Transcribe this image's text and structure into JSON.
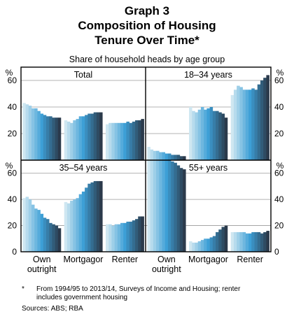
{
  "title_lines": [
    "Graph 3",
    "Composition of Housing",
    "Tenure Over Time*"
  ],
  "subtitle": "Share of household heads by age group",
  "footnote": {
    "marker": "*",
    "line1": "From 1994/95 to 2013/14, Surveys of Income and Housing; renter",
    "line2": "includes government housing"
  },
  "sources": "Sources: ABS; RBA",
  "colors": {
    "light": "#cfe7f1",
    "mid": "#3d9fd6",
    "dark": "#2b3a4b",
    "frame": "#000000",
    "grid": "#9a9a9a"
  },
  "chart_data": {
    "type": "bar",
    "unit": "%",
    "ylim": [
      0,
      70
    ],
    "y_ticks": [
      20,
      40,
      60
    ],
    "y_tick_labels_bottom": [
      0,
      20,
      40,
      60
    ],
    "categories": [
      "Own outright",
      "Mortgagor",
      "Renter"
    ],
    "category_labels": [
      [
        "Own",
        "outright"
      ],
      [
        "Mortgagor"
      ],
      [
        "Renter"
      ]
    ],
    "period_count": 13,
    "panels": [
      {
        "title": "Total",
        "groups": [
          {
            "category": "Own outright",
            "values": [
              43,
              42,
              41,
              39,
              39,
              37,
              35,
              34,
              33,
              33,
              32,
              32,
              32
            ]
          },
          {
            "category": "Mortgagor",
            "values": [
              30,
              29,
              28,
              30,
              31,
              33,
              33,
              34,
              35,
              35,
              36,
              36,
              36
            ]
          },
          {
            "category": "Renter",
            "values": [
              27,
              28,
              28,
              28,
              28,
              28,
              28,
              29,
              28,
              29,
              30,
              30,
              31
            ]
          }
        ]
      },
      {
        "title": "18–34 years",
        "groups": [
          {
            "category": "Own outright",
            "values": [
              10,
              8,
              7,
              7,
              6,
              6,
              5,
              5,
              4,
              4,
              4,
              3,
              3
            ]
          },
          {
            "category": "Mortgagor",
            "values": [
              40,
              37,
              36,
              38,
              40,
              38,
              39,
              40,
              37,
              37,
              36,
              35,
              32
            ]
          },
          {
            "category": "Renter",
            "values": [
              49,
              53,
              56,
              55,
              53,
              53,
              53,
              54,
              53,
              57,
              60,
              62,
              64
            ]
          }
        ]
      },
      {
        "title": "35–54 years",
        "groups": [
          {
            "category": "Own outright",
            "values": [
              41,
              42,
              40,
              36,
              33,
              32,
              29,
              26,
              25,
              22,
              21,
              20,
              18
            ]
          },
          {
            "category": "Mortgagor",
            "values": [
              38,
              37,
              39,
              40,
              41,
              44,
              46,
              49,
              52,
              53,
              54,
              54,
              54
            ]
          },
          {
            "category": "Renter",
            "values": [
              21,
              21,
              20,
              21,
              21,
              22,
              22,
              23,
              23,
              24,
              25,
              27,
              27
            ]
          }
        ]
      },
      {
        "title": "55+ years",
        "groups": [
          {
            "category": "Own outright",
            "values": [
              77,
              76,
              76,
              75,
              74,
              73,
              72,
              70,
              69,
              68,
              66,
              64,
              63
            ]
          },
          {
            "category": "Mortgagor",
            "values": [
              8,
              7,
              7,
              8,
              9,
              10,
              10,
              11,
              12,
              15,
              17,
              19,
              20
            ]
          },
          {
            "category": "Renter",
            "values": [
              15,
              15,
              15,
              15,
              15,
              14,
              14,
              15,
              15,
              15,
              14,
              15,
              16
            ]
          }
        ]
      }
    ]
  }
}
